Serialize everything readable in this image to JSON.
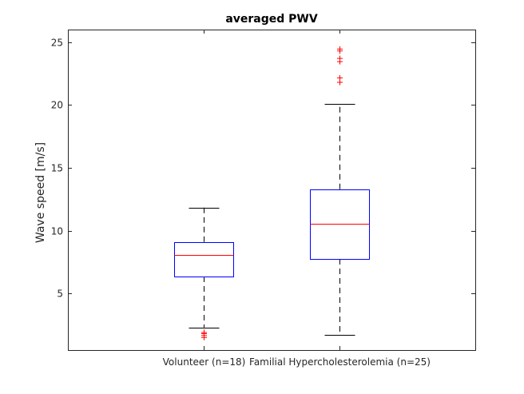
{
  "chart_data": {
    "type": "boxplot",
    "title": "averaged PWV",
    "xlabel": "",
    "ylabel": "Wave speed [m/s]",
    "ylim": [
      0.5,
      26
    ],
    "yticks": [
      5,
      10,
      15,
      20,
      25
    ],
    "categories": [
      "Volunteer (n=18)",
      "Familial Hypercholesterolemia (n=25)"
    ],
    "boxes": [
      {
        "name": "Volunteer (n=18)",
        "whisker_low": 2.3,
        "q1": 6.35,
        "median": 8.05,
        "q3": 9.1,
        "whisker_high": 11.85,
        "outliers": [
          1.5,
          1.65,
          1.8,
          1.9
        ]
      },
      {
        "name": "Familial Hypercholesterolemia (n=25)",
        "whisker_low": 1.7,
        "q1": 7.75,
        "median": 10.55,
        "q3": 13.3,
        "whisker_high": 20.1,
        "outliers": [
          21.8,
          22.15,
          23.45,
          23.7,
          24.3,
          24.45
        ]
      }
    ],
    "colors": {
      "box": "#0000ff",
      "median": "#ff0000",
      "whisker": "#000000",
      "outlier": "#ff0000",
      "axis": "#262626"
    },
    "grid": false,
    "legend": "none"
  }
}
